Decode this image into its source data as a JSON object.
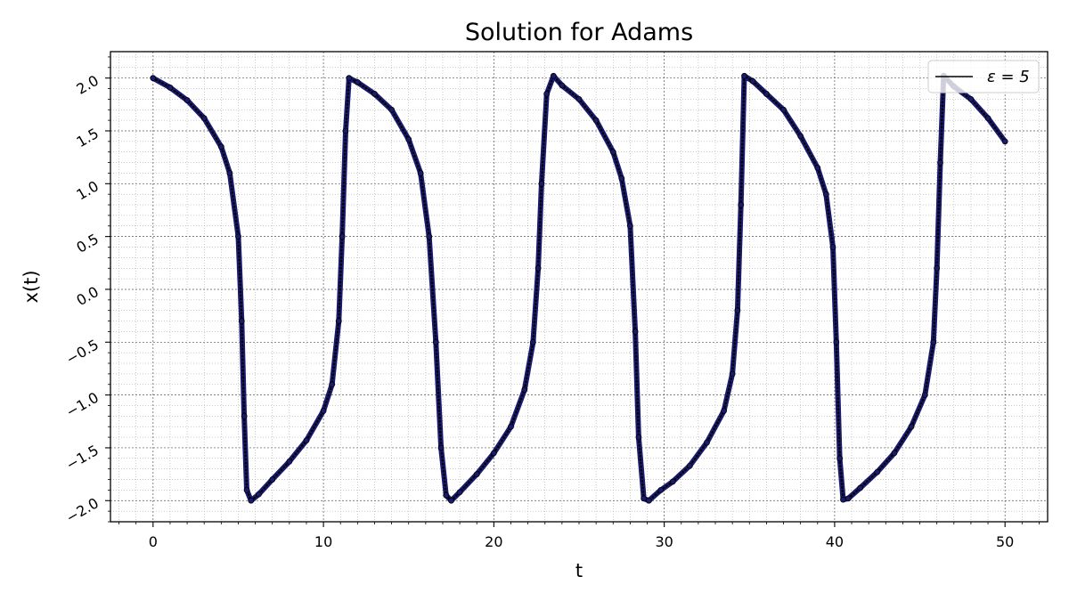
{
  "chart_data": {
    "type": "line",
    "title": "Solution for Adams",
    "xlabel": "t",
    "ylabel": "x(t)",
    "xlim": [
      -2.5,
      52.5
    ],
    "ylim": [
      -2.2,
      2.25
    ],
    "xticks": [
      0,
      10,
      20,
      30,
      40,
      50
    ],
    "xtick_labels": [
      "0",
      "10",
      "20",
      "30",
      "40",
      "50"
    ],
    "yticks": [
      2.0,
      1.5,
      1.0,
      0.5,
      0.0,
      -0.5,
      -1.0,
      -1.5,
      -2.0
    ],
    "ytick_labels": [
      "2.0",
      "1.5",
      "1.0",
      "0.5",
      "0.0",
      "−0.5",
      "−1.0",
      "−1.5",
      "−2.0"
    ],
    "grid": true,
    "minor_grid": true,
    "legend_position": "top-right",
    "series": [
      {
        "name": "ε = 5",
        "color": "#000000",
        "marker_color": "#1a1a6e",
        "x": [
          0,
          1,
          2,
          3,
          4,
          4.5,
          5.0,
          5.2,
          5.35,
          5.5,
          5.75,
          6.2,
          7,
          8,
          9,
          10,
          10.5,
          10.9,
          11.1,
          11.3,
          11.5,
          12,
          13,
          14,
          15,
          15.7,
          16.2,
          16.6,
          16.9,
          17.2,
          17.5,
          18,
          19,
          20,
          21,
          21.8,
          22.3,
          22.6,
          22.8,
          23.1,
          23.5,
          24,
          25,
          26,
          27,
          27.5,
          28,
          28.3,
          28.5,
          28.8,
          29.1,
          29.8,
          30.5,
          31.5,
          32.5,
          33.5,
          34,
          34.3,
          34.5,
          34.7,
          35.2,
          36,
          37,
          38,
          39,
          39.5,
          39.9,
          40.1,
          40.3,
          40.5,
          40.8,
          41.5,
          42.5,
          43.5,
          44.5,
          45.3,
          45.8,
          46,
          46.2,
          46.4,
          47,
          48,
          49,
          50
        ],
        "y": [
          2.0,
          1.91,
          1.79,
          1.62,
          1.35,
          1.1,
          0.5,
          -0.3,
          -1.2,
          -1.9,
          -2.0,
          -1.94,
          -1.8,
          -1.63,
          -1.43,
          -1.15,
          -0.9,
          -0.3,
          0.5,
          1.5,
          2.0,
          1.96,
          1.85,
          1.7,
          1.42,
          1.1,
          0.5,
          -0.5,
          -1.5,
          -1.95,
          -2.0,
          -1.92,
          -1.75,
          -1.55,
          -1.3,
          -0.95,
          -0.5,
          0.2,
          1.0,
          1.85,
          2.02,
          1.93,
          1.8,
          1.6,
          1.3,
          1.05,
          0.6,
          -0.4,
          -1.4,
          -1.98,
          -2.0,
          -1.9,
          -1.82,
          -1.67,
          -1.45,
          -1.15,
          -0.8,
          -0.2,
          0.8,
          2.02,
          1.97,
          1.85,
          1.7,
          1.45,
          1.15,
          0.9,
          0.4,
          -0.5,
          -1.6,
          -1.99,
          -1.98,
          -1.88,
          -1.73,
          -1.55,
          -1.3,
          -1.0,
          -0.5,
          0.2,
          1.2,
          2.02,
          1.92,
          1.8,
          1.62,
          1.4
        ]
      }
    ]
  }
}
